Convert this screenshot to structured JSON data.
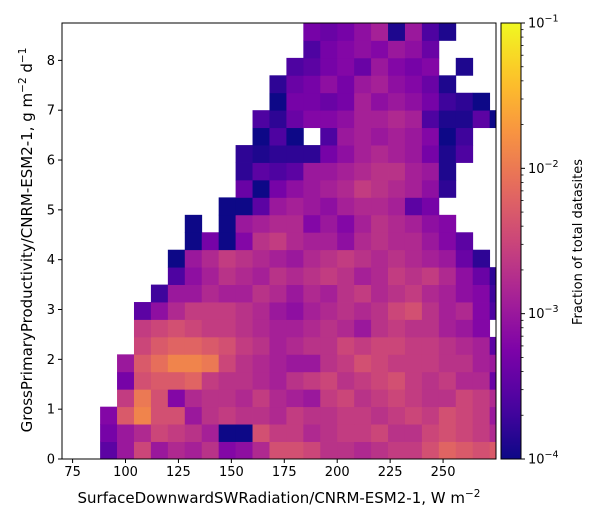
{
  "chart_data": {
    "type": "heatmap",
    "xlabel_main": "SurfaceDownwardSWRadiation/CNRM-ESM2-1,  W m",
    "xlabel_sup": "−2",
    "ylabel_main": "GrossPrimaryProductivity/CNRM-ESM2-1,  g m",
    "ylabel_sup1": "−2",
    "ylabel_mid": " d",
    "ylabel_sup2": "−1",
    "colorbar_label": "Fraction of total datasites",
    "xlim": [
      70,
      275
    ],
    "ylim": [
      0,
      8.75
    ],
    "x_bin_edges_start": 80,
    "x_bin_width": 8,
    "y_bin_width": 0.35,
    "x_ticks": [
      75,
      100,
      125,
      150,
      175,
      200,
      225,
      250
    ],
    "x_tick_labels": [
      "75",
      "100",
      "125",
      "150",
      "175",
      "200",
      "225",
      "250"
    ],
    "y_ticks": [
      0,
      1,
      2,
      3,
      4,
      5,
      6,
      7,
      8
    ],
    "y_tick_labels": [
      "0",
      "1",
      "2",
      "3",
      "4",
      "5",
      "6",
      "7",
      "8"
    ],
    "color_scale": "log",
    "color_range": [
      0.0001,
      0.1
    ],
    "colorbar_ticks": [
      {
        "value": 0.0001,
        "base": "10",
        "exp": "−4"
      },
      {
        "value": 0.001,
        "base": "10",
        "exp": "−3"
      },
      {
        "value": 0.01,
        "base": "10",
        "exp": "−2"
      },
      {
        "value": 0.1,
        "base": "10",
        "exp": "−1"
      }
    ],
    "colormap": "plasma",
    "grid": false,
    "rows_log10_fraction": [
      [
        null,
        -3.5,
        -3.0,
        -2.5,
        -3.0,
        -2.8,
        -2.9,
        -2.7,
        -3.2,
        -3.1,
        -2.8,
        -2.4,
        -2.4,
        -2.5,
        -2.7,
        -2.7,
        -2.8,
        -2.7,
        -2.6,
        -2.6,
        -2.4,
        -2.2,
        -2.3,
        -2.4,
        -2.3,
        -2.6
      ],
      [
        null,
        -3.3,
        -3.0,
        -2.8,
        -2.5,
        -2.6,
        -2.7,
        -2.9,
        -4.0,
        -4.0,
        -2.4,
        -2.6,
        -2.6,
        -2.8,
        -2.7,
        -2.6,
        -2.6,
        -2.5,
        -2.7,
        -2.7,
        -2.5,
        -2.4,
        -2.5,
        -2.6,
        -2.8,
        -3.3
      ],
      [
        null,
        -3.2,
        -2.3,
        -1.9,
        -2.4,
        -2.4,
        -3.0,
        -2.7,
        -2.6,
        -2.7,
        -2.7,
        -2.8,
        -2.6,
        -2.7,
        -2.7,
        -2.6,
        -2.6,
        -2.7,
        -2.6,
        -2.5,
        -2.6,
        -2.4,
        -2.5,
        -2.6,
        -3.0,
        -3.8
      ],
      [
        null,
        null,
        -2.6,
        -2.0,
        -2.4,
        -3.2,
        -2.8,
        -2.7,
        -2.7,
        -2.8,
        -2.6,
        -2.8,
        -2.9,
        -3.0,
        -2.6,
        -2.5,
        -2.7,
        -2.6,
        -2.5,
        -2.6,
        -2.7,
        -2.7,
        -2.5,
        -2.6,
        -2.8,
        -3.4
      ],
      [
        null,
        null,
        -3.3,
        -2.4,
        -2.3,
        -2.3,
        -2.2,
        -2.6,
        -2.7,
        -2.7,
        -2.8,
        -2.9,
        -2.7,
        -2.6,
        -2.5,
        -2.7,
        -2.6,
        -2.5,
        -2.4,
        -2.6,
        -2.7,
        -2.6,
        -2.8,
        -2.8,
        -3.4,
        -4.0
      ],
      [
        null,
        null,
        -3.0,
        -2.3,
        -2.1,
        -1.9,
        -1.9,
        -2.0,
        -2.5,
        -2.7,
        -2.8,
        -2.9,
        -3.0,
        -3.0,
        -2.7,
        -2.6,
        -2.4,
        -2.5,
        -2.6,
        -2.6,
        -2.6,
        -2.7,
        -2.7,
        -2.9,
        -3.0,
        null
      ],
      [
        null,
        null,
        null,
        -2.5,
        -2.3,
        -2.2,
        -2.2,
        -2.3,
        -2.4,
        -2.6,
        -2.7,
        -2.9,
        -2.8,
        -2.7,
        -2.7,
        -2.5,
        -2.6,
        -2.5,
        -2.5,
        -2.6,
        -2.6,
        -2.7,
        -2.8,
        -2.9,
        -3.5,
        null
      ],
      [
        null,
        null,
        null,
        -2.6,
        -2.5,
        -2.4,
        -2.5,
        -2.6,
        -2.6,
        -2.7,
        -2.8,
        -2.9,
        -2.9,
        -2.8,
        -2.7,
        -2.8,
        -3.0,
        -2.7,
        -2.6,
        -2.7,
        -2.7,
        -2.9,
        -3.0,
        -3.2,
        null,
        null
      ],
      [
        null,
        null,
        null,
        -3.5,
        -3.1,
        -2.8,
        -2.6,
        -2.6,
        -2.6,
        -2.7,
        -2.8,
        -3.0,
        -3.1,
        -2.9,
        -2.8,
        -2.7,
        -2.8,
        -2.7,
        -2.5,
        -2.4,
        -2.7,
        -2.9,
        -2.8,
        -3.2,
        -3.6,
        null
      ],
      [
        null,
        null,
        null,
        null,
        -3.7,
        -3.0,
        -3.0,
        -2.8,
        -2.9,
        -2.9,
        -2.7,
        -2.8,
        -3.0,
        -2.8,
        -2.9,
        -2.7,
        -2.6,
        -2.8,
        -2.7,
        -2.6,
        -2.8,
        -2.9,
        -3.1,
        -3.2,
        -3.7,
        null
      ],
      [
        null,
        null,
        null,
        null,
        null,
        -3.6,
        -3.1,
        -2.9,
        -2.7,
        -2.8,
        -2.9,
        -2.7,
        -2.8,
        -2.7,
        -2.6,
        -2.7,
        -2.9,
        -2.8,
        -2.6,
        -2.7,
        -2.6,
        -2.8,
        -3.1,
        -3.4,
        -3.8,
        null
      ],
      [
        null,
        null,
        null,
        null,
        null,
        -4.0,
        -3.0,
        -2.8,
        -2.6,
        -2.7,
        -2.8,
        -2.9,
        -3.0,
        -2.8,
        -2.7,
        -2.6,
        -2.7,
        -2.8,
        -2.7,
        -2.8,
        -2.9,
        -3.0,
        -3.4,
        -3.8,
        null,
        null
      ],
      [
        null,
        null,
        null,
        null,
        null,
        null,
        -4.0,
        -3.3,
        -4.0,
        -3.2,
        -2.7,
        -2.6,
        -2.8,
        -2.9,
        -2.9,
        -3.1,
        -2.8,
        -2.7,
        -2.8,
        -2.8,
        -3.0,
        -3.2,
        -3.5,
        null,
        null,
        null
      ],
      [
        null,
        null,
        null,
        null,
        null,
        null,
        -4.0,
        null,
        -4.0,
        -3.0,
        -2.9,
        -2.8,
        -2.8,
        -3.2,
        -3.0,
        -3.2,
        -2.9,
        -2.7,
        -2.8,
        -2.9,
        -3.1,
        -3.2,
        null,
        null,
        null,
        null
      ],
      [
        null,
        null,
        null,
        null,
        null,
        null,
        null,
        null,
        -4.0,
        -4.0,
        -3.5,
        -3.0,
        -2.9,
        -3.0,
        -3.1,
        -2.9,
        -2.8,
        -2.8,
        -2.9,
        -3.5,
        -3.3,
        null,
        null,
        null,
        null,
        null
      ],
      [
        null,
        null,
        null,
        null,
        null,
        null,
        null,
        null,
        null,
        -3.4,
        -4.0,
        -3.3,
        -3.1,
        -3.0,
        -2.9,
        -2.8,
        -2.6,
        -2.7,
        -2.8,
        -2.9,
        -3.1,
        -3.8,
        null,
        null,
        null,
        null
      ],
      [
        null,
        null,
        null,
        null,
        null,
        null,
        null,
        null,
        null,
        -3.8,
        -3.5,
        -3.6,
        -3.5,
        -3.0,
        -3.0,
        -2.9,
        -2.8,
        -2.7,
        -2.7,
        -2.9,
        -3.0,
        -3.9,
        null,
        null,
        null,
        null
      ],
      [
        null,
        null,
        null,
        null,
        null,
        null,
        null,
        null,
        null,
        -3.8,
        -3.9,
        -3.8,
        -3.8,
        -3.8,
        -3.3,
        -3.1,
        -2.9,
        -2.8,
        -2.9,
        -3.0,
        -3.3,
        -3.9,
        -3.6,
        null,
        null,
        null
      ],
      [
        null,
        null,
        null,
        null,
        null,
        null,
        null,
        null,
        null,
        null,
        -4.0,
        -3.6,
        -4.0,
        null,
        -3.6,
        -3.0,
        -2.9,
        -3.0,
        -2.9,
        -3.0,
        -3.2,
        -4.0,
        -3.7,
        null,
        null,
        null
      ],
      [
        null,
        null,
        null,
        null,
        null,
        null,
        null,
        null,
        null,
        null,
        -3.6,
        -3.8,
        -3.4,
        -3.2,
        -3.2,
        -3.1,
        -2.9,
        -2.9,
        -2.8,
        -2.9,
        -3.6,
        -3.9,
        -3.9,
        -3.5,
        -4.0,
        null
      ],
      [
        null,
        null,
        null,
        null,
        null,
        null,
        null,
        null,
        null,
        null,
        null,
        -4.0,
        -3.3,
        -3.3,
        -3.4,
        -3.3,
        -2.9,
        -3.1,
        -3.0,
        -3.1,
        -3.3,
        -3.7,
        -3.8,
        -4.0,
        null,
        null
      ],
      [
        null,
        null,
        null,
        null,
        null,
        null,
        null,
        null,
        null,
        null,
        null,
        -3.8,
        -3.4,
        -3.3,
        -3.1,
        -3.3,
        -3.0,
        -2.9,
        -3.1,
        -3.2,
        -3.4,
        -3.9,
        null,
        null,
        null,
        null
      ],
      [
        null,
        null,
        null,
        null,
        null,
        null,
        null,
        null,
        null,
        null,
        null,
        null,
        -3.6,
        -3.5,
        -3.3,
        -3.2,
        -3.4,
        -3.0,
        -3.2,
        -3.3,
        -3.2,
        null,
        -3.9,
        null,
        null,
        null
      ],
      [
        null,
        null,
        null,
        null,
        null,
        null,
        null,
        null,
        null,
        null,
        null,
        null,
        null,
        -3.6,
        -3.3,
        -3.2,
        -3.1,
        -3.2,
        -3.0,
        -3.1,
        -3.4,
        null,
        null,
        null,
        null,
        null
      ],
      [
        null,
        null,
        null,
        null,
        null,
        null,
        null,
        null,
        null,
        null,
        null,
        null,
        null,
        -3.3,
        -3.4,
        -3.3,
        -3.1,
        -2.9,
        -3.9,
        -3.0,
        -3.6,
        -3.9,
        null,
        null,
        null,
        null
      ],
      [
        null,
        null,
        null,
        null,
        null,
        null,
        null,
        null,
        null,
        null,
        null,
        null,
        null,
        -3.3,
        -3.2,
        -3.2,
        -3.0,
        -3.4,
        -3.7,
        -4.0,
        -3.8,
        null,
        null,
        null,
        null,
        null
      ]
    ]
  }
}
